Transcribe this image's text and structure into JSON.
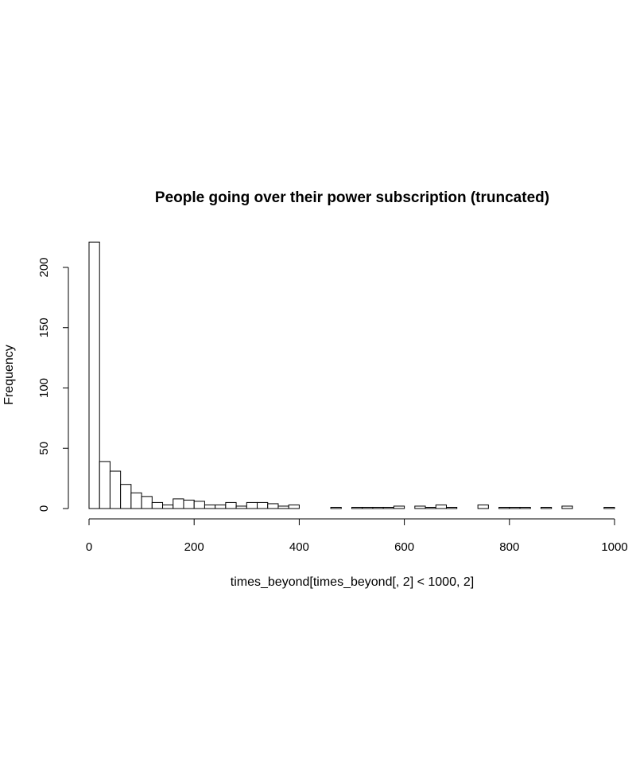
{
  "chart_data": {
    "type": "bar",
    "title": "People going over their power subscription (truncated)",
    "xlabel": "times_beyond[times_beyond[, 2] < 1000, 2]",
    "ylabel": "Frequency",
    "bin_width": 20,
    "bin_start": 0,
    "xlim": [
      0,
      1000
    ],
    "ylim": [
      0,
      220
    ],
    "x_ticks": [
      0,
      200,
      400,
      600,
      800,
      1000
    ],
    "y_ticks": [
      0,
      50,
      100,
      150,
      200
    ],
    "values": [
      221,
      39,
      31,
      20,
      13,
      10,
      5,
      3,
      8,
      7,
      6,
      3,
      3,
      5,
      2,
      5,
      5,
      4,
      2,
      3,
      0,
      0,
      0,
      1,
      0,
      1,
      1,
      1,
      1,
      2,
      0,
      2,
      1,
      3,
      1,
      0,
      0,
      3,
      0,
      1,
      1,
      1,
      0,
      1,
      0,
      2,
      0,
      0,
      0,
      1
    ],
    "grid": false,
    "legend": "none"
  }
}
